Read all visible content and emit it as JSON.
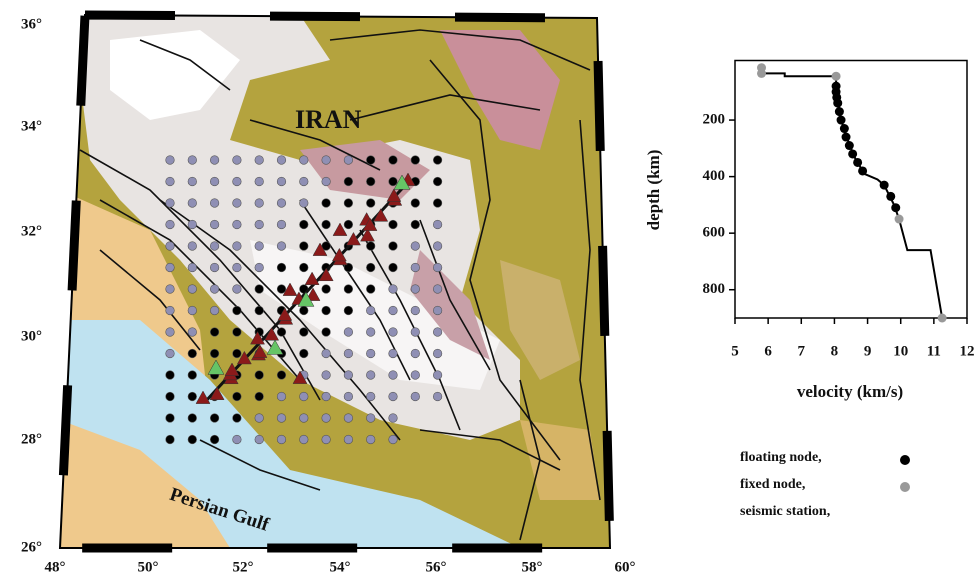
{
  "map": {
    "lat_labels": [
      "36°",
      "34°",
      "32°",
      "30°",
      "28°",
      "26°"
    ],
    "lon_labels": [
      "48°",
      "50°",
      "52°",
      "54°",
      "56°",
      "58°",
      "60°"
    ],
    "country_label": "IRAN",
    "sea_label": "Persian Gulf",
    "station_legend": "seismic station,",
    "station_color": "#8b1a1a"
  },
  "chart_data": {
    "type": "line",
    "xlabel": "velocity (km/s)",
    "ylabel": "depth (km)",
    "xlim": [
      5,
      12
    ],
    "ylim": [
      0,
      900
    ],
    "y_inverted": true,
    "xticks": [
      5,
      6,
      7,
      8,
      9,
      10,
      11,
      12
    ],
    "yticks": [
      200,
      400,
      600,
      800
    ],
    "line": {
      "color": "#000000",
      "x": [
        5.8,
        5.8,
        6.5,
        6.5,
        8.05,
        8.05,
        8.1,
        8.2,
        8.4,
        8.6,
        8.9,
        9.3,
        9.5,
        9.8,
        9.95,
        10.2,
        10.9,
        11.25
      ],
      "values": [
        15,
        35,
        35,
        45,
        45,
        80,
        120,
        200,
        270,
        330,
        390,
        410,
        430,
        500,
        550,
        660,
        660,
        900
      ]
    },
    "series": [
      {
        "name": "floating node,",
        "color": "#000000",
        "x": [
          8.05,
          8.05,
          8.07,
          8.1,
          8.15,
          8.2,
          8.3,
          8.35,
          8.45,
          8.55,
          8.7,
          8.85,
          9.5,
          9.7,
          9.85
        ],
        "values": [
          80,
          100,
          120,
          140,
          170,
          200,
          230,
          260,
          290,
          320,
          350,
          380,
          430,
          470,
          510
        ]
      },
      {
        "name": "fixed node,",
        "color": "#999999",
        "x": [
          5.8,
          5.8,
          8.05,
          9.95,
          11.25
        ],
        "values": [
          15,
          35,
          45,
          550,
          900
        ]
      }
    ]
  }
}
